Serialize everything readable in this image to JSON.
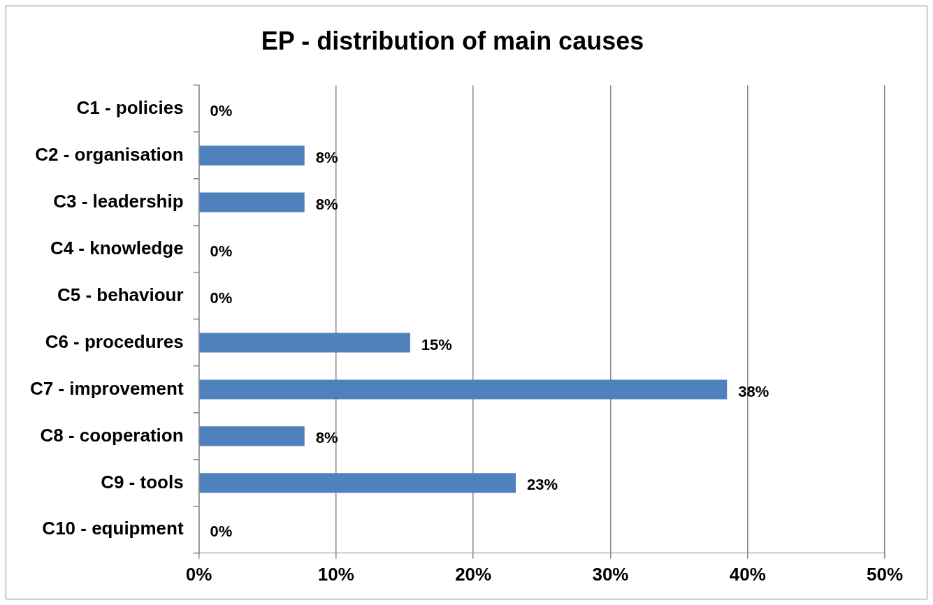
{
  "chart_data": {
    "type": "bar",
    "orientation": "horizontal",
    "title": "EP - distribution of main causes",
    "categories": [
      "C1 - policies",
      "C2 - organisation",
      "C3 - leadership",
      "C4 - knowledge",
      "C5 - behaviour",
      "C6 - procedures",
      "C7 - improvement",
      "C8 - cooperation",
      "C9 - tools",
      "C10 - equipment"
    ],
    "values": [
      0,
      7.7,
      7.7,
      0,
      0,
      15.4,
      38.5,
      7.7,
      23.1,
      0
    ],
    "value_labels": [
      "0%",
      "8%",
      "8%",
      "0%",
      "0%",
      "15%",
      "38%",
      "8%",
      "23%",
      "0%"
    ],
    "color": "#4f81bd",
    "xlim": [
      0,
      50
    ],
    "xticks": [
      {
        "value": 0,
        "label": "0%"
      },
      {
        "value": 10,
        "label": "10%"
      },
      {
        "value": 20,
        "label": "20%"
      },
      {
        "value": 30,
        "label": "30%"
      },
      {
        "value": 40,
        "label": "40%"
      },
      {
        "value": 50,
        "label": "50%"
      }
    ],
    "grid": "x",
    "legend": false
  }
}
